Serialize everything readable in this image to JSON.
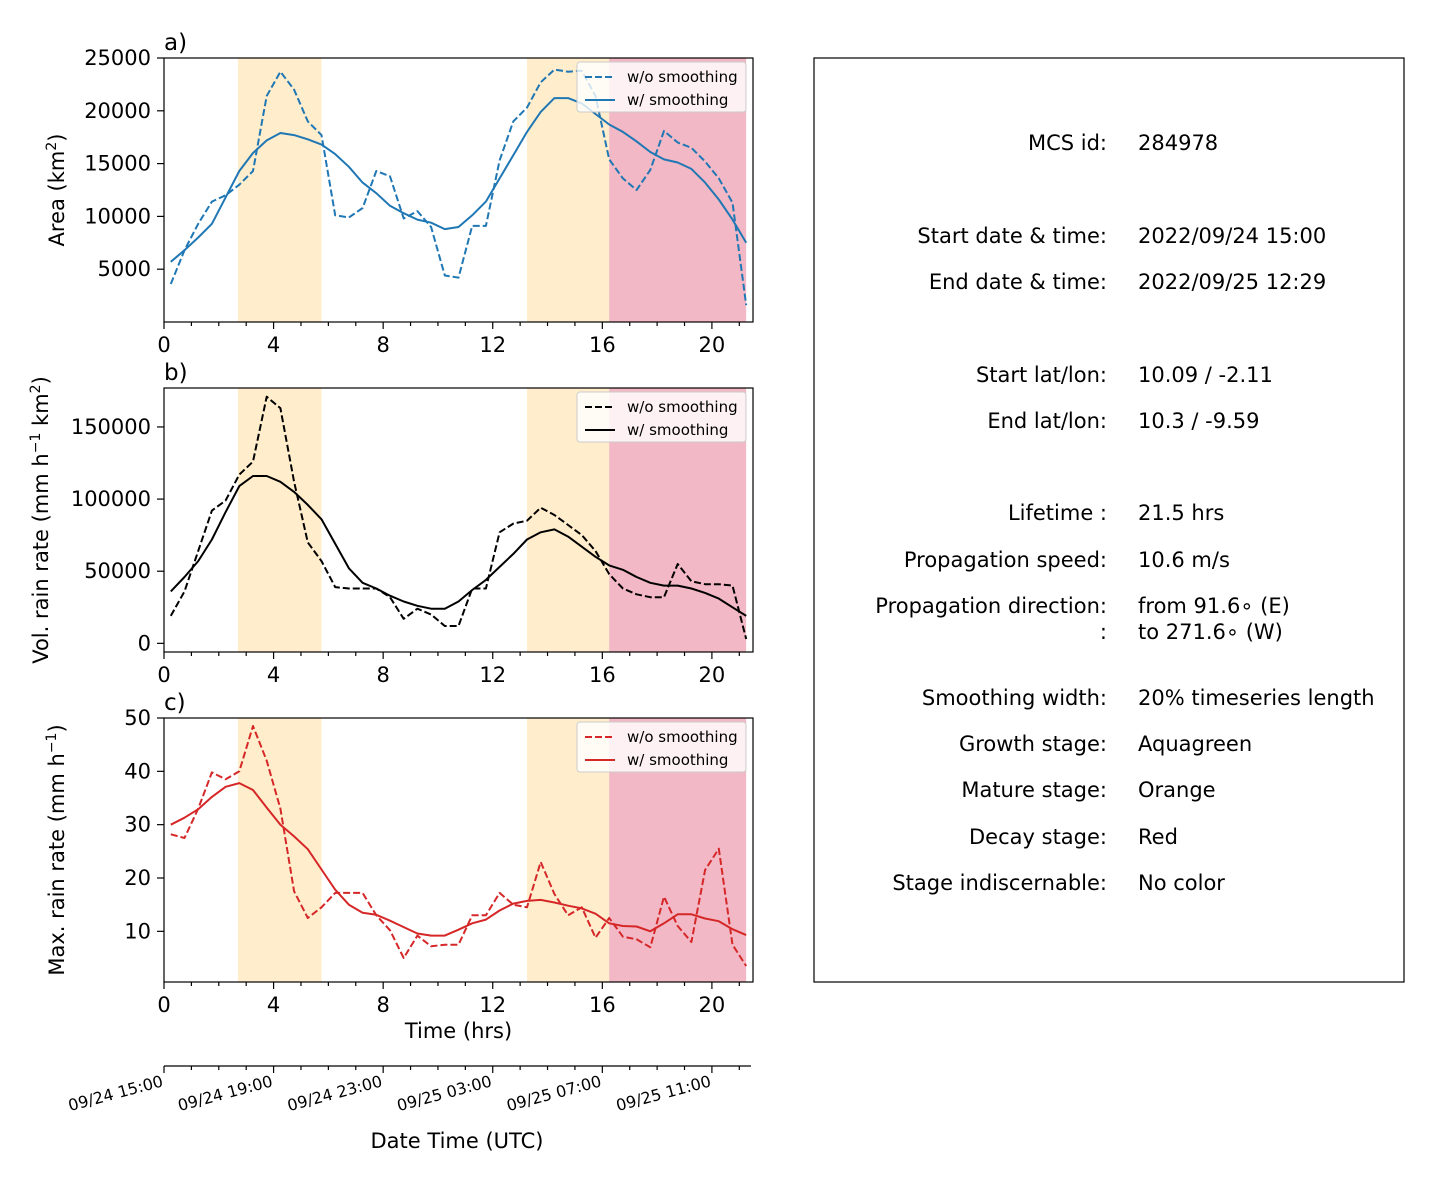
{
  "colors": {
    "mature_band": "#ffedcc",
    "decay_band": "#f2b8c5",
    "area": "#1f77b4",
    "volrain": "#000000",
    "maxrain": "#d62728"
  },
  "stage_bands": [
    {
      "stage": "mature",
      "x0": 2.7,
      "x1": 5.75
    },
    {
      "stage": "mature",
      "x0": 13.25,
      "x1": 16.25
    },
    {
      "stage": "decay",
      "x0": 16.25,
      "x1": 21.25
    }
  ],
  "legend_labels": {
    "raw": "w/o smoothing",
    "smooth": "w/ smoothing"
  },
  "chart_data": [
    {
      "panel": "a)",
      "type": "line",
      "ylabel": "Area  (km",
      "ylabel_sup": "2",
      "ylabel_tail": ")",
      "xlim": [
        0,
        21.5
      ],
      "ylim": [
        0,
        25000
      ],
      "yticks": [
        5000,
        10000,
        15000,
        20000,
        25000
      ],
      "xticks": [
        0,
        4,
        8,
        12,
        16,
        20
      ],
      "legend": "top-right",
      "series": [
        {
          "name": "w/o smoothing",
          "style": "dashed",
          "x": [
            0.25,
            0.75,
            1.25,
            1.75,
            2.25,
            2.75,
            3.25,
            3.75,
            4.25,
            4.75,
            5.25,
            5.75,
            6.25,
            6.75,
            7.25,
            7.75,
            8.25,
            8.75,
            9.25,
            9.75,
            10.25,
            10.75,
            11.25,
            11.75,
            12.25,
            12.75,
            13.25,
            13.75,
            14.25,
            14.75,
            15.25,
            15.75,
            16.25,
            16.75,
            17.25,
            17.75,
            18.25,
            18.75,
            19.25,
            19.75,
            20.25,
            20.75,
            21.25
          ],
          "values": [
            3600,
            6800,
            9300,
            11400,
            12000,
            13000,
            14300,
            21400,
            23700,
            22000,
            19000,
            17700,
            10100,
            9900,
            10800,
            14300,
            13800,
            9800,
            10500,
            9000,
            4400,
            4200,
            9100,
            9100,
            15300,
            19000,
            20300,
            22700,
            23900,
            23700,
            23800,
            21400,
            15400,
            13600,
            12500,
            14400,
            18100,
            17000,
            16500,
            15200,
            13600,
            11300,
            1600
          ]
        },
        {
          "name": "w/ smoothing",
          "style": "solid",
          "x": [
            0.25,
            0.75,
            1.25,
            1.75,
            2.25,
            2.75,
            3.25,
            3.75,
            4.25,
            4.75,
            5.25,
            5.75,
            6.25,
            6.75,
            7.25,
            7.75,
            8.25,
            8.75,
            9.25,
            9.75,
            10.25,
            10.75,
            11.25,
            11.75,
            12.25,
            12.75,
            13.25,
            13.75,
            14.25,
            14.75,
            15.25,
            15.75,
            16.25,
            16.75,
            17.25,
            17.75,
            18.25,
            18.75,
            19.25,
            19.75,
            20.25,
            20.75,
            21.25
          ],
          "values": [
            5700,
            6800,
            8000,
            9300,
            11800,
            14300,
            16000,
            17200,
            17900,
            17700,
            17300,
            16800,
            15900,
            14700,
            13200,
            12200,
            11000,
            10300,
            9700,
            9400,
            8800,
            9000,
            10100,
            11400,
            13600,
            15800,
            18000,
            19900,
            21200,
            21200,
            20700,
            19700,
            18700,
            18000,
            17100,
            16100,
            15400,
            15100,
            14500,
            13200,
            11600,
            9700,
            7500
          ]
        }
      ]
    },
    {
      "panel": "b)",
      "type": "line",
      "ylabel": "Vol. rain rate (mm h",
      "ylabel_sup": "−1",
      "ylabel_mid": " km",
      "ylabel_sup2": "2",
      "ylabel_tail": ")",
      "xlim": [
        0,
        21.5
      ],
      "ylim": [
        -6000,
        177000
      ],
      "yticks": [
        0,
        50000,
        100000,
        150000
      ],
      "xticks": [
        0,
        4,
        8,
        12,
        16,
        20
      ],
      "legend": "top-right",
      "series": [
        {
          "name": "w/o smoothing",
          "style": "dashed",
          "x": [
            0.25,
            0.75,
            1.25,
            1.75,
            2.25,
            2.75,
            3.25,
            3.75,
            4.25,
            4.75,
            5.25,
            5.75,
            6.25,
            6.75,
            7.25,
            7.75,
            8.25,
            8.75,
            9.25,
            9.75,
            10.25,
            10.75,
            11.25,
            11.75,
            12.25,
            12.75,
            13.25,
            13.75,
            14.25,
            14.75,
            15.25,
            15.75,
            16.25,
            16.75,
            17.25,
            17.75,
            18.25,
            18.75,
            19.25,
            19.75,
            20.25,
            20.75,
            21.25
          ],
          "values": [
            19000,
            36000,
            64000,
            92000,
            99000,
            117000,
            126000,
            171000,
            163000,
            112000,
            70000,
            57000,
            39000,
            38000,
            38000,
            38000,
            32000,
            17000,
            24000,
            20000,
            12000,
            12000,
            38000,
            38000,
            77000,
            83000,
            85000,
            94000,
            89000,
            82000,
            75000,
            64000,
            48000,
            38000,
            34000,
            32000,
            32000,
            55000,
            43000,
            41000,
            41000,
            40000,
            3000
          ]
        },
        {
          "name": "w/ smoothing",
          "style": "solid",
          "x": [
            0.25,
            0.75,
            1.25,
            1.75,
            2.25,
            2.75,
            3.25,
            3.75,
            4.25,
            4.75,
            5.25,
            5.75,
            6.25,
            6.75,
            7.25,
            7.75,
            8.25,
            8.75,
            9.25,
            9.75,
            10.25,
            10.75,
            11.25,
            11.75,
            12.25,
            12.75,
            13.25,
            13.75,
            14.25,
            14.75,
            15.25,
            15.75,
            16.25,
            16.75,
            17.25,
            17.75,
            18.25,
            18.75,
            19.25,
            19.75,
            20.25,
            20.75,
            21.25
          ],
          "values": [
            36000,
            46000,
            57000,
            72000,
            91000,
            109000,
            116000,
            116000,
            112000,
            105000,
            96000,
            86000,
            69000,
            52000,
            42000,
            38000,
            33000,
            29000,
            26000,
            24000,
            24000,
            29000,
            37000,
            44000,
            53000,
            62000,
            72000,
            77000,
            79000,
            74000,
            67000,
            60000,
            54000,
            51000,
            46000,
            42000,
            40000,
            40000,
            38000,
            35000,
            31000,
            25000,
            19000
          ]
        }
      ]
    },
    {
      "panel": "c)",
      "type": "line",
      "ylabel": "Max. rain rate  (mm h",
      "ylabel_sup": "−1",
      "ylabel_tail": ")",
      "xlabel": "Time (hrs)",
      "xlim": [
        0,
        21.5
      ],
      "ylim": [
        0.5,
        50
      ],
      "yticks": [
        10,
        20,
        30,
        40,
        50
      ],
      "xticks": [
        0,
        4,
        8,
        12,
        16,
        20
      ],
      "legend": "top-right",
      "series": [
        {
          "name": "w/o smoothing",
          "style": "dashed",
          "x": [
            0.25,
            0.75,
            1.25,
            1.75,
            2.25,
            2.75,
            3.25,
            3.75,
            4.25,
            4.75,
            5.25,
            5.75,
            6.25,
            6.75,
            7.25,
            7.75,
            8.25,
            8.75,
            9.25,
            9.75,
            10.25,
            10.75,
            11.25,
            11.75,
            12.25,
            12.75,
            13.25,
            13.75,
            14.25,
            14.75,
            15.25,
            15.75,
            16.25,
            16.75,
            17.25,
            17.75,
            18.25,
            18.75,
            19.25,
            19.75,
            20.25,
            20.75,
            21.25
          ],
          "values": [
            28.2,
            27.5,
            33.0,
            39.8,
            38.5,
            40.0,
            48.5,
            42.0,
            33.0,
            17.5,
            12.5,
            14.5,
            17.2,
            17.2,
            17.2,
            13.0,
            10.2,
            5.0,
            9.2,
            7.2,
            7.5,
            7.5,
            13.0,
            13.0,
            17.2,
            15.0,
            14.5,
            23.0,
            17.0,
            13.0,
            14.5,
            8.8,
            12.5,
            9.0,
            8.5,
            7.0,
            16.5,
            11.0,
            8.0,
            21.5,
            25.5,
            7.5,
            3.5
          ]
        },
        {
          "name": "w/ smoothing",
          "style": "solid",
          "x": [
            0.25,
            0.75,
            1.25,
            1.75,
            2.25,
            2.75,
            3.25,
            3.75,
            4.25,
            4.75,
            5.25,
            5.75,
            6.25,
            6.75,
            7.25,
            7.75,
            8.25,
            8.75,
            9.25,
            9.75,
            10.25,
            10.75,
            11.25,
            11.75,
            12.25,
            12.75,
            13.25,
            13.75,
            14.25,
            14.75,
            15.25,
            15.75,
            16.25,
            16.75,
            17.25,
            17.75,
            18.25,
            18.75,
            19.25,
            19.75,
            20.25,
            20.75,
            21.25
          ],
          "values": [
            30.0,
            31.3,
            32.9,
            35.2,
            37.1,
            37.8,
            36.5,
            33.2,
            30.0,
            27.8,
            25.4,
            21.6,
            17.8,
            15.0,
            13.5,
            13.1,
            12.0,
            10.8,
            9.6,
            9.2,
            9.2,
            10.3,
            11.5,
            12.2,
            13.9,
            15.2,
            15.7,
            15.9,
            15.4,
            14.8,
            14.3,
            13.3,
            11.5,
            11.0,
            10.9,
            10.0,
            11.5,
            13.2,
            13.2,
            12.4,
            11.9,
            10.4,
            9.3
          ]
        }
      ]
    }
  ],
  "date_axis": {
    "xlabel": "Date Time (UTC)",
    "tick_labels": [
      "09/24 15:00",
      "09/24 19:00",
      "09/24 23:00",
      "09/25 03:00",
      "09/25 07:00",
      "09/25 11:00"
    ]
  },
  "info": [
    {
      "label": "MCS id:",
      "value": "284978"
    },
    {
      "label": "Start date & time:",
      "value": "2022/09/24 15:00"
    },
    {
      "label": "End date & time:",
      "value": "2022/09/25 12:29"
    },
    {
      "label": "Start lat/lon:",
      "value": "10.09 / -2.11"
    },
    {
      "label": "End lat/lon:",
      "value": "10.3 / -9.59"
    },
    {
      "label": "Lifetime :",
      "value": "21.5 hrs"
    },
    {
      "label": "Propagation speed:",
      "value": "10.6 m/s"
    },
    {
      "label": "Propagation direction:",
      "value": "from  91.6∘ (E)"
    },
    {
      "label": ":",
      "value": "to   271.6∘ (W)"
    },
    {
      "label": "Smoothing width:",
      "value": "20% timeseries length"
    },
    {
      "label": "Growth stage:",
      "value": "Aquagreen"
    },
    {
      "label": "Mature stage:",
      "value": "Orange"
    },
    {
      "label": "Decay stage:",
      "value": "Red"
    },
    {
      "label": "Stage indiscernable:",
      "value": "No color"
    }
  ]
}
